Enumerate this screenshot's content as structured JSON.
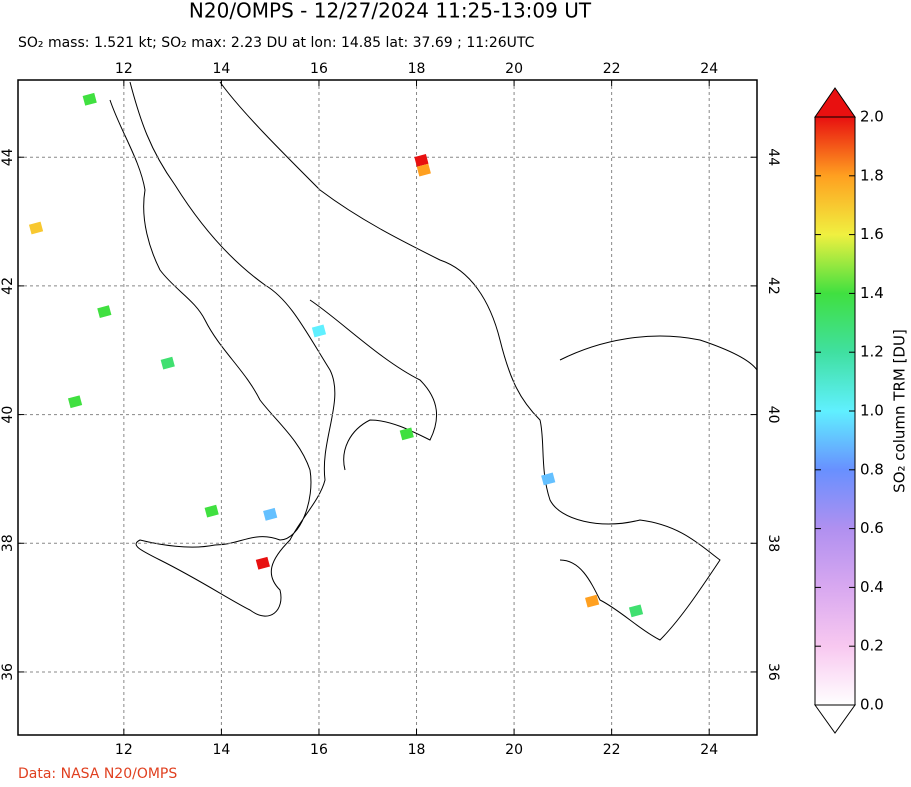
{
  "chart_data": {
    "type": "scatter",
    "title": "N20/OMPS - 12/27/2024 11:25-13:09 UT",
    "subtitle": "SO₂ mass: 1.521 kt; SO₂ max: 2.23 DU at lon: 14.85 lat: 37.69 ; 11:26UTC",
    "xlim": [
      9.83,
      24.98
    ],
    "ylim": [
      35.02,
      45.2
    ],
    "xticks": [
      12,
      14,
      16,
      18,
      20,
      22,
      24
    ],
    "yticks": [
      36,
      38,
      40,
      42,
      44
    ],
    "grid": true,
    "x": [
      14.85,
      18.1,
      18.15,
      10.2,
      21.6,
      11.3,
      11.6,
      12.9,
      15.0,
      16.0,
      20.7,
      17.8,
      13.8,
      22.5,
      11.0
    ],
    "y": [
      37.69,
      43.95,
      43.8,
      42.9,
      37.1,
      44.9,
      41.6,
      40.8,
      38.45,
      41.3,
      39.0,
      39.7,
      38.5,
      36.95,
      40.2
    ],
    "values": [
      2.0,
      2.0,
      1.8,
      1.7,
      1.8,
      1.4,
      1.4,
      1.3,
      0.9,
      1.0,
      0.9,
      1.4,
      1.4,
      1.3,
      1.4
    ],
    "colorbar": {
      "label": "SO₂ column TRM [DU]",
      "lim": [
        0,
        2
      ],
      "ticks": [
        {
          "value": 0,
          "label": "0.0"
        },
        0.2,
        0.4,
        0.6,
        0.8,
        {
          "value": 1,
          "label": "1.0"
        },
        1.2,
        1.4,
        1.6,
        1.8,
        {
          "value": 2,
          "label": "2.0"
        }
      ],
      "colors": [
        "#ffffff",
        "#f8c8f0",
        "#d8a8f0",
        "#b090f0",
        "#6890ff",
        "#60f0ff",
        "#40e0a0",
        "#40e040",
        "#f0f040",
        "#ffa020",
        "#e81010"
      ]
    },
    "source": "Data: NASA N20/OMPS"
  }
}
